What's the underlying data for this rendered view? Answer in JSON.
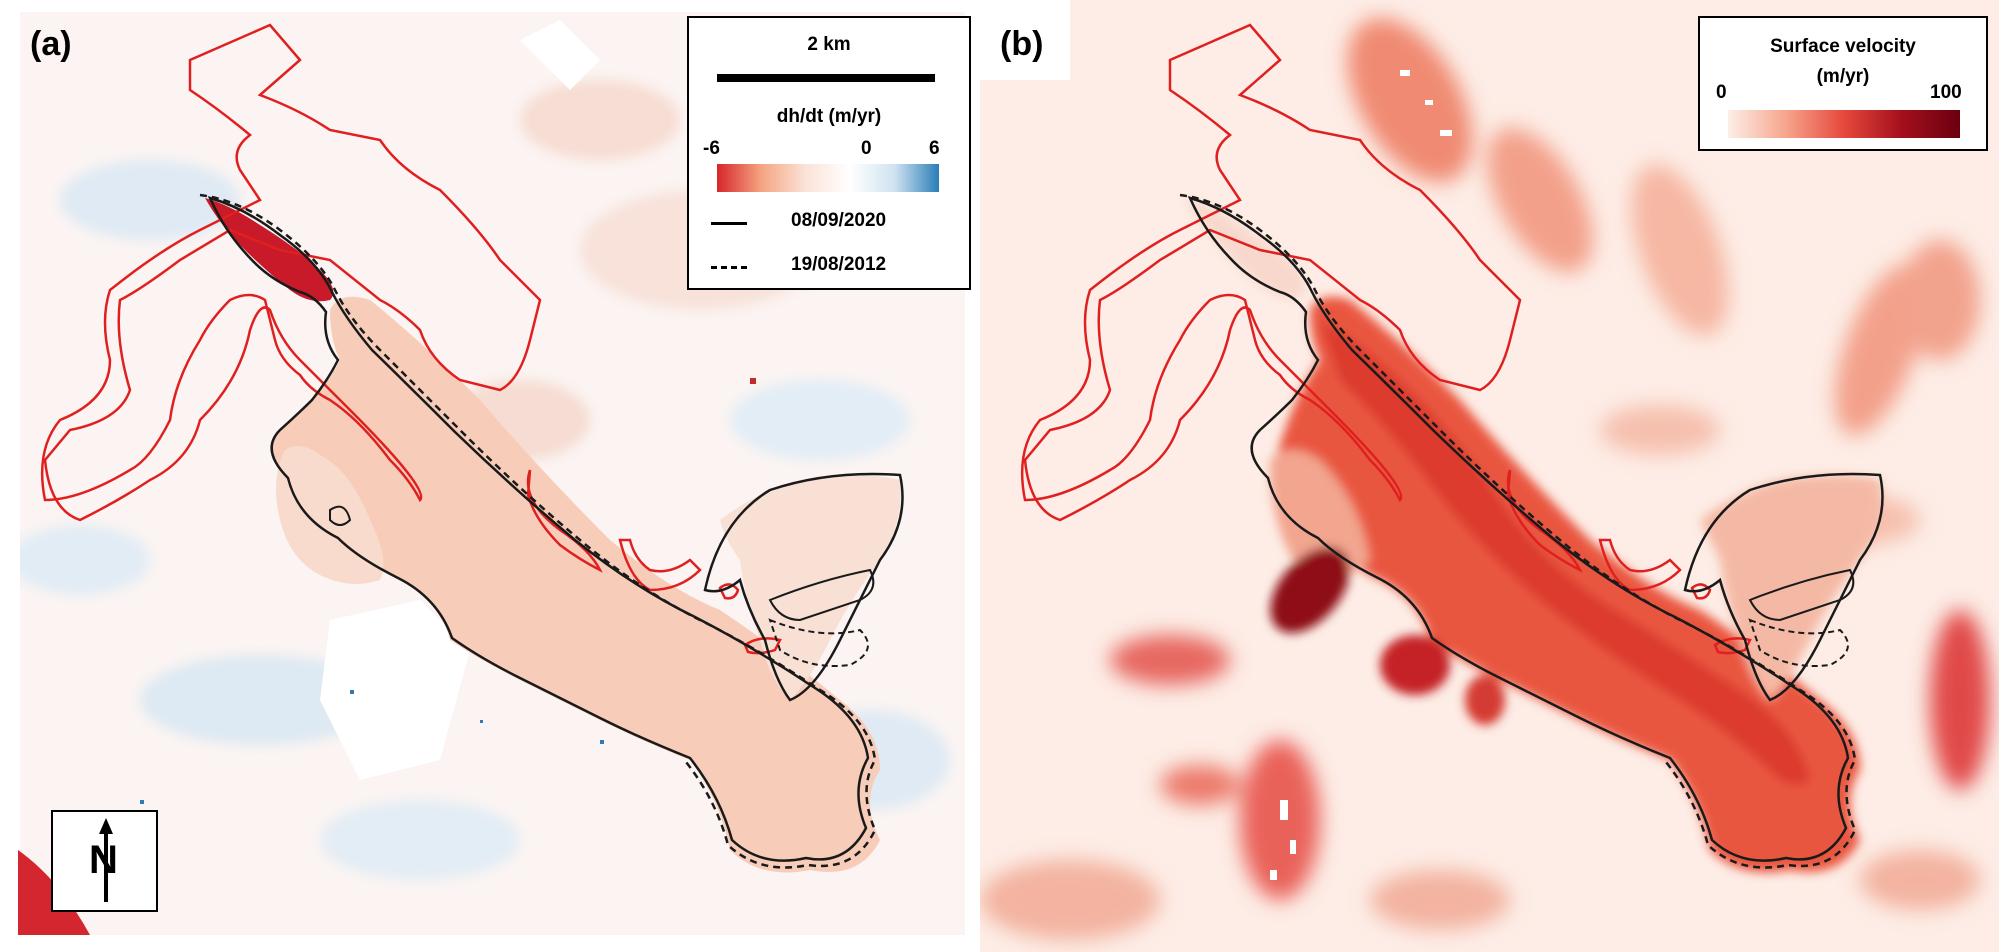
{
  "panel_a": {
    "label": "(a)",
    "legend": {
      "scale_label": "2 km",
      "colorbar_title": "dh/dt (m/yr)",
      "tick_min": "-6",
      "tick_mid": "0",
      "tick_max": "6",
      "colorbar_colors": [
        "#d7262b",
        "#f4a582",
        "#fbe3d8",
        "#ffffff",
        "#cfe3f0",
        "#2a7db8"
      ],
      "solid_line_label": "08/09/2020",
      "dashed_line_label": "19/08/2012"
    },
    "north_arrow_label": "N"
  },
  "panel_b": {
    "label": "(b)",
    "legend": {
      "title_line1": "Surface velocity",
      "title_line2": "(m/yr)",
      "tick_min": "0",
      "tick_max": "100",
      "colorbar_colors": [
        "#fdeee8",
        "#f6a58c",
        "#e5483c",
        "#a40f1c",
        "#6a0010"
      ]
    }
  },
  "colors": {
    "outline_red": "#e02020",
    "outline_black": "#1a1a1a",
    "thinning_red": "#d21f2b",
    "glacier_tint_a": "#f6cbb6",
    "glacier_velocity": "#e8463a",
    "fast_velocity": "#8e0b14"
  }
}
